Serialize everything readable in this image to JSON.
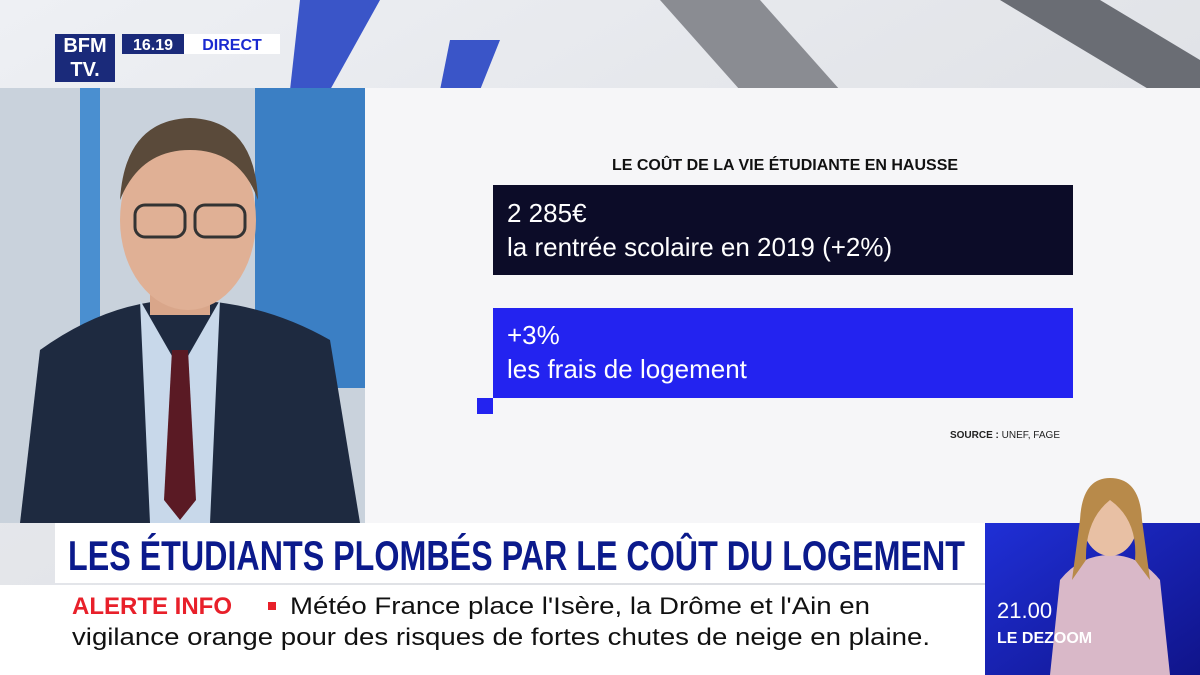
{
  "logo": {
    "line1": "BFM",
    "line2": "TV."
  },
  "status": {
    "time": "16.19",
    "label": "DIRECT"
  },
  "graphic": {
    "title": "LE COÛT DE LA VIE ÉTUDIANTE EN HAUSSE",
    "boxes": [
      {
        "figure": "2 285€",
        "text": "la rentrée scolaire en 2019 (+2%)"
      },
      {
        "figure": "+3%",
        "text": "les frais de logement"
      }
    ],
    "source_label": "SOURCE :",
    "source": "UNEF, FAGE"
  },
  "headline": "LES ÉTUDIANTS PLOMBÉS PAR LE COÛT DU LOGEMENT",
  "alert": {
    "label": "ALERTE INFO",
    "lines": [
      "Météo France place l'Isère, la Drôme et l'Ain en",
      "vigilance orange pour des risques de fortes chutes de neige en plaine."
    ]
  },
  "next": {
    "time": "21.00",
    "show": "LE DEZOOM"
  }
}
